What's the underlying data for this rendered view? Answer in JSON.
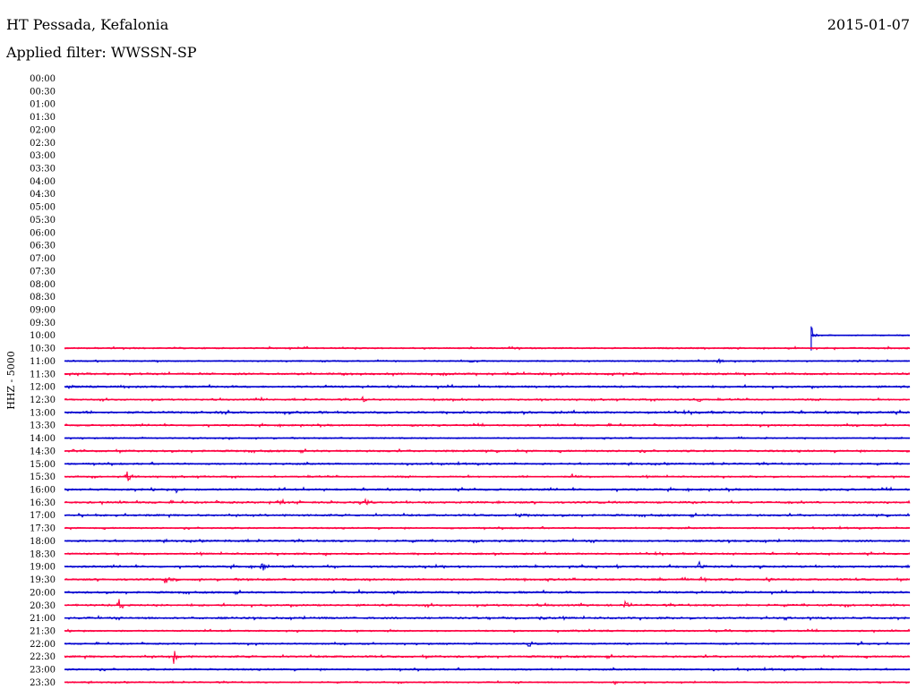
{
  "header": {
    "station": "HT Pessada, Kefalonia",
    "date": "2015-01-07",
    "filter_label": "Applied filter: WWSSN-SP"
  },
  "chart_data": {
    "type": "line",
    "title": "HT Pessada, Kefalonia",
    "ylabel": "HHZ - 5000",
    "tick_labels": [
      "00:00",
      "00:30",
      "01:00",
      "01:30",
      "02:00",
      "02:30",
      "03:00",
      "03:30",
      "04:00",
      "04:30",
      "05:00",
      "05:30",
      "06:00",
      "06:30",
      "07:00",
      "07:30",
      "08:00",
      "08:30",
      "09:00",
      "09:30",
      "10:00",
      "10:30",
      "11:00",
      "11:30",
      "12:00",
      "12:30",
      "13:00",
      "13:30",
      "14:00",
      "14:30",
      "15:00",
      "15:30",
      "16:00",
      "16:30",
      "17:00",
      "17:30",
      "18:00",
      "18:30",
      "19:00",
      "19:30",
      "20:00",
      "20:30",
      "21:00",
      "21:30",
      "22:00",
      "22:30",
      "23:00",
      "23:30"
    ],
    "colors": {
      "odd_rows": "#0000d0",
      "even_rows": "#ff0040"
    },
    "x_range_minutes": [
      0,
      30
    ],
    "data_start": {
      "row": "10:00",
      "minute": 26.5
    },
    "rows": [
      {
        "label": "10:00",
        "noise": 0.6,
        "events": [
          {
            "t": 26.5,
            "amp": 8
          }
        ]
      },
      {
        "label": "10:30",
        "noise": 0.8,
        "events": []
      },
      {
        "label": "11:00",
        "noise": 0.7,
        "events": [
          {
            "t": 23.2,
            "amp": 3
          }
        ]
      },
      {
        "label": "11:30",
        "noise": 1.0,
        "events": [
          {
            "t": 16.3,
            "amp": 2
          }
        ]
      },
      {
        "label": "12:00",
        "noise": 1.0,
        "events": [
          {
            "t": 2.0,
            "amp": 2
          }
        ]
      },
      {
        "label": "12:30",
        "noise": 0.8,
        "events": [
          {
            "t": 7.0,
            "amp": 3
          },
          {
            "t": 10.6,
            "amp": 3
          },
          {
            "t": 17.0,
            "amp": 3
          },
          {
            "t": 22.5,
            "amp": 3
          }
        ]
      },
      {
        "label": "13:00",
        "noise": 1.1,
        "events": []
      },
      {
        "label": "13:30",
        "noise": 0.9,
        "events": []
      },
      {
        "label": "14:00",
        "noise": 0.7,
        "events": []
      },
      {
        "label": "14:30",
        "noise": 1.0,
        "events": [
          {
            "t": 0.3,
            "amp": 2
          }
        ]
      },
      {
        "label": "15:00",
        "noise": 0.9,
        "events": []
      },
      {
        "label": "15:30",
        "noise": 0.8,
        "events": [
          {
            "t": 2.2,
            "amp": 9
          },
          {
            "t": 18.0,
            "amp": 3
          }
        ]
      },
      {
        "label": "16:00",
        "noise": 1.0,
        "events": [
          {
            "t": 4.0,
            "amp": 4
          },
          {
            "t": 8.5,
            "amp": 2
          }
        ]
      },
      {
        "label": "16:30",
        "noise": 1.0,
        "events": [
          {
            "t": 7.6,
            "amp": 6
          },
          {
            "t": 10.7,
            "amp": 5
          }
        ]
      },
      {
        "label": "17:00",
        "noise": 1.0,
        "events": [
          {
            "t": 16.2,
            "amp": 2
          }
        ]
      },
      {
        "label": "17:30",
        "noise": 0.8,
        "events": [
          {
            "t": 21.1,
            "amp": 3
          }
        ]
      },
      {
        "label": "18:00",
        "noise": 1.0,
        "events": []
      },
      {
        "label": "18:30",
        "noise": 0.9,
        "events": [
          {
            "t": 9.2,
            "amp": 2
          }
        ]
      },
      {
        "label": "19:00",
        "noise": 1.0,
        "events": [
          {
            "t": 7.0,
            "amp": 5
          },
          {
            "t": 22.5,
            "amp": 6
          }
        ]
      },
      {
        "label": "19:30",
        "noise": 1.0,
        "events": [
          {
            "t": 3.6,
            "amp": 7
          },
          {
            "t": 22.6,
            "amp": 3
          },
          {
            "t": 25.0,
            "amp": 2
          }
        ]
      },
      {
        "label": "20:00",
        "noise": 1.0,
        "events": [
          {
            "t": 10.5,
            "amp": 3
          }
        ]
      },
      {
        "label": "20:30",
        "noise": 1.0,
        "events": [
          {
            "t": 1.9,
            "amp": 9
          },
          {
            "t": 19.9,
            "amp": 5
          }
        ]
      },
      {
        "label": "21:00",
        "noise": 1.0,
        "events": [
          {
            "t": 16.9,
            "amp": 4
          }
        ]
      },
      {
        "label": "21:30",
        "noise": 0.8,
        "events": [
          {
            "t": 23.5,
            "amp": 2
          }
        ]
      },
      {
        "label": "22:00",
        "noise": 0.8,
        "events": [
          {
            "t": 16.5,
            "amp": 3
          },
          {
            "t": 24.8,
            "amp": 3
          },
          {
            "t": 28.2,
            "amp": 5
          }
        ]
      },
      {
        "label": "22:30",
        "noise": 1.0,
        "events": [
          {
            "t": 3.9,
            "amp": 9
          }
        ]
      },
      {
        "label": "23:00",
        "noise": 0.9,
        "events": []
      },
      {
        "label": "23:30",
        "noise": 0.7,
        "events": [
          {
            "t": 19.5,
            "amp": 4
          }
        ]
      }
    ]
  }
}
